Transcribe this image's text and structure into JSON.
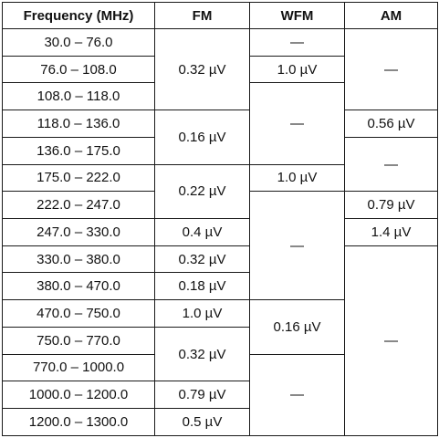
{
  "table": {
    "headers": {
      "frequency": "Frequency (MHz)",
      "fm": "FM",
      "wfm": "WFM",
      "am": "AM"
    },
    "frequency_ranges": [
      "30.0 – 76.0",
      "76.0 – 108.0",
      "108.0 – 118.0",
      "118.0 – 136.0",
      "136.0 – 175.0",
      "175.0 – 222.0",
      "222.0 – 247.0",
      "247.0 – 330.0",
      "330.0 – 380.0",
      "380.0 – 470.0",
      "470.0 – 750.0",
      "750.0 – 770.0",
      "770.0 – 1000.0",
      "1000.0 – 1200.0",
      "1200.0 – 1300.0"
    ],
    "fm": [
      "0.32 µV",
      "0.16 µV",
      "0.22 µV",
      "0.4 µV",
      "0.32 µV",
      "0.18 µV",
      "1.0 µV",
      "0.32 µV",
      "0.79 µV",
      "0.5 µV"
    ],
    "wfm": [
      "—",
      "1.0 µV",
      "—",
      "1.0 µV",
      "—",
      "0.16 µV",
      "—"
    ],
    "am": [
      "—",
      "0.56 µV",
      "—",
      "0.79 µV",
      "1.4 µV",
      "—"
    ]
  }
}
